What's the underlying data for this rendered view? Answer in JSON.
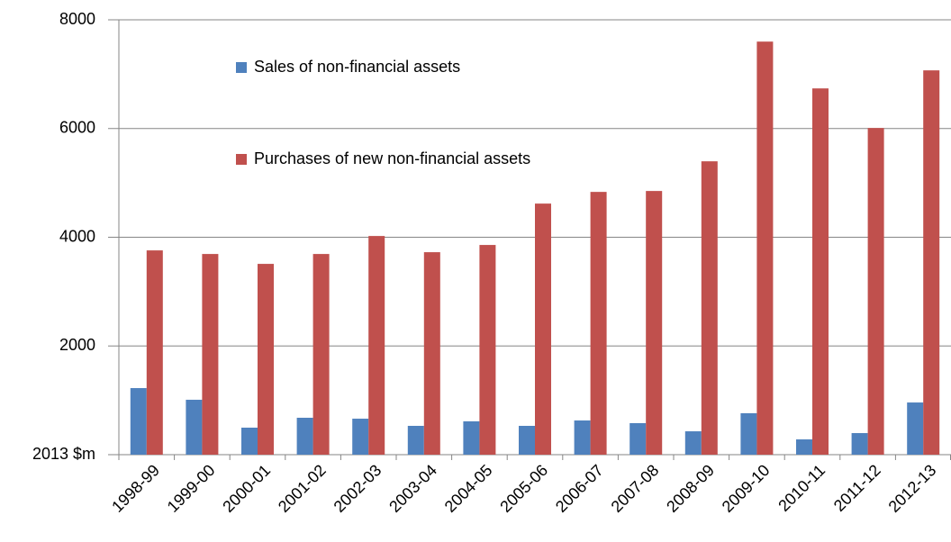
{
  "chart_data": {
    "type": "bar",
    "categories": [
      "1998-99",
      "1999-00",
      "2000-01",
      "2001-02",
      "2002-03",
      "2003-04",
      "2004-05",
      "2005-06",
      "2006-07",
      "2007-08",
      "2008-09",
      "2009-10",
      "2010-11",
      "2011-12",
      "2012-13"
    ],
    "series": [
      {
        "name": "Sales of non-financial assets",
        "color": "#4f81bd",
        "values": [
          1225,
          1010,
          497,
          679,
          662,
          530,
          613,
          530,
          629,
          580,
          430,
          762,
          281,
          397,
          960
        ]
      },
      {
        "name": "Purchases of new non-financial assets",
        "color": "#c0504d",
        "values": [
          3758,
          3692,
          3510,
          3692,
          4023,
          3725,
          3858,
          4619,
          4834,
          4851,
          5397,
          7599,
          6738,
          6010,
          7070
        ]
      }
    ],
    "ylim": [
      0,
      8000
    ],
    "yticks": [
      {
        "value": 0,
        "label": "2013 $m"
      },
      2000,
      4000,
      6000,
      8000
    ],
    "grid": true,
    "legend": "top-left"
  }
}
